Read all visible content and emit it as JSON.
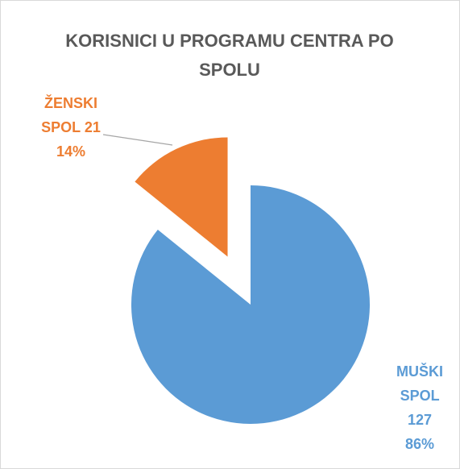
{
  "chart_data": {
    "type": "pie",
    "title": "KORISNICI U PROGRAMU CENTRA PO SPOLU",
    "categories": [
      "MUŠKI SPOL",
      "ŽENSKI SPOL"
    ],
    "values": [
      127,
      21
    ],
    "percent_labels": [
      "86%",
      "14%"
    ],
    "colors": [
      "#5b9bd5",
      "#ed7d31"
    ]
  }
}
